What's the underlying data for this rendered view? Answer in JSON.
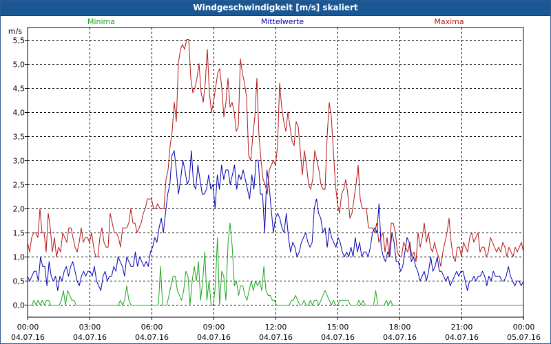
{
  "window": {
    "title": "Windgeschwindigkeit [m/s] skaliert"
  },
  "colors": {
    "min": "#1aa51a",
    "mean": "#0000b4",
    "max": "#b41414",
    "grid": "#000000",
    "frame": "#000000",
    "title_bg": "#1a5795"
  },
  "chart_data": {
    "type": "line",
    "title": "Windgeschwindigkeit [m/s] skaliert",
    "ylabel": "m/s",
    "ylim": [
      -0.25,
      5.75
    ],
    "yticks": [
      0,
      0.5,
      1,
      1.5,
      2,
      2.5,
      3,
      3.5,
      4,
      4.5,
      5,
      5.5
    ],
    "ytick_labels": [
      "0,0",
      "0,5",
      "1,0",
      "1,5",
      "2,0",
      "2,5",
      "3,0",
      "3,5",
      "4,0",
      "4,5",
      "5,0",
      "5,5"
    ],
    "x_range_hours": [
      0,
      24
    ],
    "xticks": [
      {
        "hour": 0,
        "time": "00:00",
        "date": "04.07.16"
      },
      {
        "hour": 3,
        "time": "03:00",
        "date": "04.07.16"
      },
      {
        "hour": 6,
        "time": "06:00",
        "date": "04.07.16"
      },
      {
        "hour": 9,
        "time": "09:00",
        "date": "04.07.16"
      },
      {
        "hour": 12,
        "time": "12:00",
        "date": "04.07.16"
      },
      {
        "hour": 15,
        "time": "15:00",
        "date": "04.07.16"
      },
      {
        "hour": 18,
        "time": "18:00",
        "date": "04.07.16"
      },
      {
        "hour": 21,
        "time": "21:00",
        "date": "04.07.16"
      },
      {
        "hour": 24,
        "time": "00:00",
        "date": "05.07.16"
      }
    ],
    "legend": {
      "placement": "top",
      "labels": [
        "Minima",
        "Mittelwerte",
        "Maxima"
      ]
    },
    "interval_hours": 0.1667,
    "series": [
      {
        "name": "Minima",
        "color": "#1aa51a",
        "values": [
          0.0,
          0.0,
          0.0,
          0.1,
          0.0,
          0.1,
          0.0,
          0.1,
          0.0,
          0.1,
          0.1,
          0.0,
          0.0,
          0.0,
          0.0,
          0.0,
          0.1,
          0.3,
          0.0,
          0.3,
          0.2,
          0.1,
          0.1,
          0.0,
          0.0,
          0.0,
          0.0,
          0.0,
          0.0,
          0.0,
          0.0,
          0.0,
          0.0,
          0.0,
          0.0,
          0.0,
          0.0,
          0.0,
          0.0,
          0.0,
          0.0,
          0.0,
          0.0,
          0.0,
          0.1,
          0.0,
          0.1,
          0.4,
          0.1,
          0.0,
          0.0,
          0.0,
          0.0,
          0.0,
          0.0,
          0.0,
          0.0,
          0.0,
          0.0,
          0.0,
          0.0,
          0.0,
          0.0,
          0.8,
          0.0,
          0.0,
          0.0,
          0.2,
          0.4,
          0.6,
          0.6,
          0.3,
          0.2,
          0.1,
          0.3,
          0.7,
          0.6,
          0.0,
          0.5,
          0.8,
          0.5,
          0.9,
          0.1,
          0.5,
          1.1,
          0.1,
          0.5,
          0.0,
          0.0,
          0.4,
          1.4,
          0.0,
          0.7,
          0.6,
          0.1,
          1.3,
          1.7,
          1.2,
          0.4,
          0.5,
          0.2,
          0.4,
          0.4,
          0.2,
          0.1,
          0.3,
          0.5,
          0.3,
          0.5,
          0.4,
          0.5,
          0.3,
          0.8,
          0.3,
          0.2,
          0.2,
          0.1,
          0.1,
          0.0,
          0.0,
          0.0,
          0.0,
          0.0,
          0.0,
          0.0,
          0.1,
          0.1,
          0.2,
          0.1,
          0.0,
          0.0,
          0.1,
          0.0,
          0.0,
          0.1,
          0.0,
          0.1,
          0.1,
          0.0,
          0.1,
          0.2,
          0.3,
          0.2,
          0.1,
          0.0,
          0.1,
          0.0,
          0.0,
          0.1,
          0.1,
          0.1,
          0.1,
          0.1,
          0.0,
          0.0,
          0.0,
          0.0,
          0.1,
          0.0,
          0.1,
          0.0,
          0.0,
          0.0,
          0.0,
          0.0,
          0.3,
          0.0,
          0.0,
          0.0,
          0.0,
          0.1,
          0.0,
          0.1,
          0.0,
          0.0,
          0.0,
          0.0,
          0.0,
          0.0,
          0.0,
          0.0,
          0.0,
          0.0,
          0.0,
          0.0,
          0.0,
          0.0,
          0.0,
          0.0,
          0.0,
          0.0,
          0.0,
          0.0,
          0.0,
          0.0,
          0.0,
          0.0,
          0.0,
          0.0,
          0.0,
          0.0,
          0.0,
          0.0,
          0.0,
          0.0,
          0.0,
          0.0,
          0.0,
          0.0,
          0.0,
          0.0,
          0.0,
          0.0,
          0.0,
          0.0,
          0.0,
          0.0,
          0.0,
          0.0,
          0.0,
          0.0,
          0.0,
          0.0,
          0.0,
          0.0,
          0.0,
          0.0,
          0.0,
          0.0,
          0.0,
          0.0,
          0.0,
          0.0,
          0.0,
          0.0,
          0.0
        ]
      },
      {
        "name": "Mittelwerte",
        "color": "#0000b4",
        "values": [
          0.6,
          0.5,
          0.6,
          0.7,
          0.7,
          0.5,
          1.0,
          0.8,
          0.8,
          0.4,
          0.9,
          0.6,
          0.5,
          0.6,
          0.3,
          0.6,
          0.5,
          0.7,
          0.8,
          0.6,
          0.8,
          0.9,
          0.7,
          0.5,
          0.4,
          0.6,
          0.7,
          0.6,
          0.7,
          0.7,
          0.6,
          0.8,
          0.5,
          0.4,
          0.3,
          0.6,
          0.7,
          0.5,
          0.6,
          0.6,
          0.8,
          0.7,
          1.0,
          0.9,
          0.8,
          0.6,
          1.0,
          0.9,
          0.8,
          0.8,
          1.1,
          0.8,
          1.0,
          0.9,
          0.8,
          0.9,
          0.8,
          1.1,
          1.2,
          1.4,
          1.3,
          1.6,
          1.8,
          1.5,
          1.9,
          2.3,
          2.5,
          3.1,
          3.2,
          2.8,
          2.3,
          2.6,
          3.0,
          2.8,
          2.5,
          2.6,
          3.2,
          2.5,
          2.4,
          2.9,
          2.6,
          2.3,
          2.3,
          2.4,
          2.7,
          2.4,
          2.5,
          2.0,
          2.7,
          2.4,
          2.9,
          2.6,
          2.8,
          2.8,
          2.5,
          2.7,
          2.9,
          2.4,
          2.7,
          2.6,
          2.8,
          2.6,
          2.4,
          2.2,
          2.7,
          2.4,
          3.0,
          3.0,
          2.3,
          2.3,
          1.5,
          2.8,
          2.5,
          2.0,
          1.5,
          1.8,
          1.9,
          1.8,
          1.6,
          1.5,
          1.9,
          1.4,
          1.1,
          1.3,
          1.2,
          1.0,
          1.1,
          1.3,
          1.4,
          1.5,
          1.3,
          1.2,
          1.3,
          2.0,
          2.2,
          1.9,
          1.8,
          1.5,
          1.6,
          1.2,
          1.6,
          1.4,
          1.3,
          1.2,
          1.4,
          1.3,
          1.1,
          1.0,
          1.1,
          1.0,
          1.2,
          1.0,
          1.4,
          1.1,
          1.3,
          1.0,
          1.1,
          1.1,
          1.0,
          1.2,
          1.5,
          1.6,
          1.5,
          2.1,
          1.2,
          1.0,
          0.9,
          1.1,
          1.0,
          1.5,
          1.3,
          0.9,
          0.9,
          0.7,
          0.8,
          1.1,
          1.4,
          1.3,
          0.9,
          1.0,
          0.8,
          0.7,
          0.5,
          0.6,
          0.7,
          0.5,
          0.7,
          1.0,
          0.7,
          0.8,
          1.0,
          0.7,
          0.7,
          0.6,
          0.5,
          0.6,
          0.4,
          0.5,
          0.6,
          0.7,
          0.6,
          0.7,
          0.7,
          0.5,
          0.3,
          0.5,
          0.5,
          0.6,
          0.5,
          0.6,
          0.6,
          0.7,
          0.6,
          0.4,
          0.6,
          0.5,
          0.7,
          0.6,
          0.6,
          0.6,
          0.5,
          0.5,
          0.6,
          0.8,
          0.6,
          0.5,
          0.4,
          0.5,
          0.5,
          0.4,
          0.5
        ]
      },
      {
        "name": "Maxima",
        "color": "#b41414",
        "values": [
          1.3,
          1.1,
          1.4,
          1.5,
          1.5,
          1.4,
          2.0,
          1.5,
          1.5,
          1.1,
          1.9,
          1.6,
          1.1,
          1.4,
          1.0,
          1.2,
          1.1,
          1.5,
          1.4,
          1.3,
          1.6,
          1.6,
          1.4,
          1.2,
          1.1,
          1.3,
          1.6,
          1.3,
          1.4,
          1.4,
          1.3,
          1.5,
          1.2,
          1.0,
          1.0,
          1.4,
          1.6,
          1.3,
          1.2,
          1.2,
          1.9,
          1.7,
          1.5,
          1.5,
          1.4,
          1.2,
          1.6,
          1.6,
          1.6,
          1.7,
          2.0,
          1.7,
          1.7,
          1.5,
          1.6,
          1.7,
          1.9,
          2.0,
          2.2,
          2.2,
          2.2,
          2.0,
          2.0,
          2.1,
          2.0,
          2.0,
          2.0,
          2.6,
          2.8,
          3.3,
          3.6,
          4.2,
          3.8,
          5.0,
          5.3,
          5.4,
          5.3,
          5.5,
          5.5,
          4.7,
          4.4,
          4.5,
          4.7,
          5.0,
          4.4,
          4.2,
          4.6,
          5.3,
          4.4,
          4.0,
          4.2,
          4.5,
          4.8,
          4.9,
          4.5,
          3.9,
          4.2,
          4.7,
          4.1,
          4.2,
          4.0,
          3.6,
          3.7,
          5.1,
          4.8,
          4.6,
          4.3,
          3.1,
          3.0,
          3.5,
          3.9,
          4.7,
          3.5,
          3.0,
          2.6,
          2.5,
          2.3,
          2.8,
          2.9,
          3.0,
          2.9,
          3.3,
          4.6,
          4.1,
          3.8,
          3.6,
          4.0,
          3.7,
          3.4,
          3.3,
          3.8,
          3.7,
          3.2,
          2.7,
          3.2,
          2.9,
          2.5,
          2.4,
          2.6,
          3.2,
          3.0,
          2.8,
          2.5,
          2.4,
          2.4,
          3.5,
          4.2,
          3.9,
          3.2,
          2.5,
          2.1,
          1.9,
          2.3,
          2.4,
          2.6,
          2.3,
          1.8,
          1.9,
          2.2,
          2.5,
          2.9,
          2.2,
          2.0,
          2.0,
          2.0,
          1.6,
          1.6,
          1.6,
          1.5,
          1.7,
          1.3,
          1.4,
          1.5,
          1.1,
          1.4,
          1.0,
          1.7,
          1.7,
          1.5,
          1.1,
          1.0,
          1.0,
          1.3,
          1.2,
          1.1,
          1.3,
          1.0,
          1.1,
          0.9,
          1.5,
          1.2,
          1.4,
          1.7,
          1.3,
          1.5,
          1.2,
          1.1,
          1.3,
          1.1,
          1.0,
          0.8,
          1.1,
          1.3,
          1.5,
          1.8,
          1.3,
          1.0,
          0.9,
          1.2,
          1.2,
          1.0,
          1.3,
          1.2,
          1.1,
          1.4,
          1.5,
          1.3,
          1.4,
          1.5,
          1.1,
          1.2,
          1.2,
          1.0,
          1.1,
          1.4,
          1.3,
          1.2,
          1.1,
          1.2,
          1.1,
          1.3,
          1.2,
          1.0,
          1.2,
          1.1,
          1.0,
          1.2,
          1.1,
          1.2,
          1.3,
          1.1
        ]
      }
    ]
  }
}
